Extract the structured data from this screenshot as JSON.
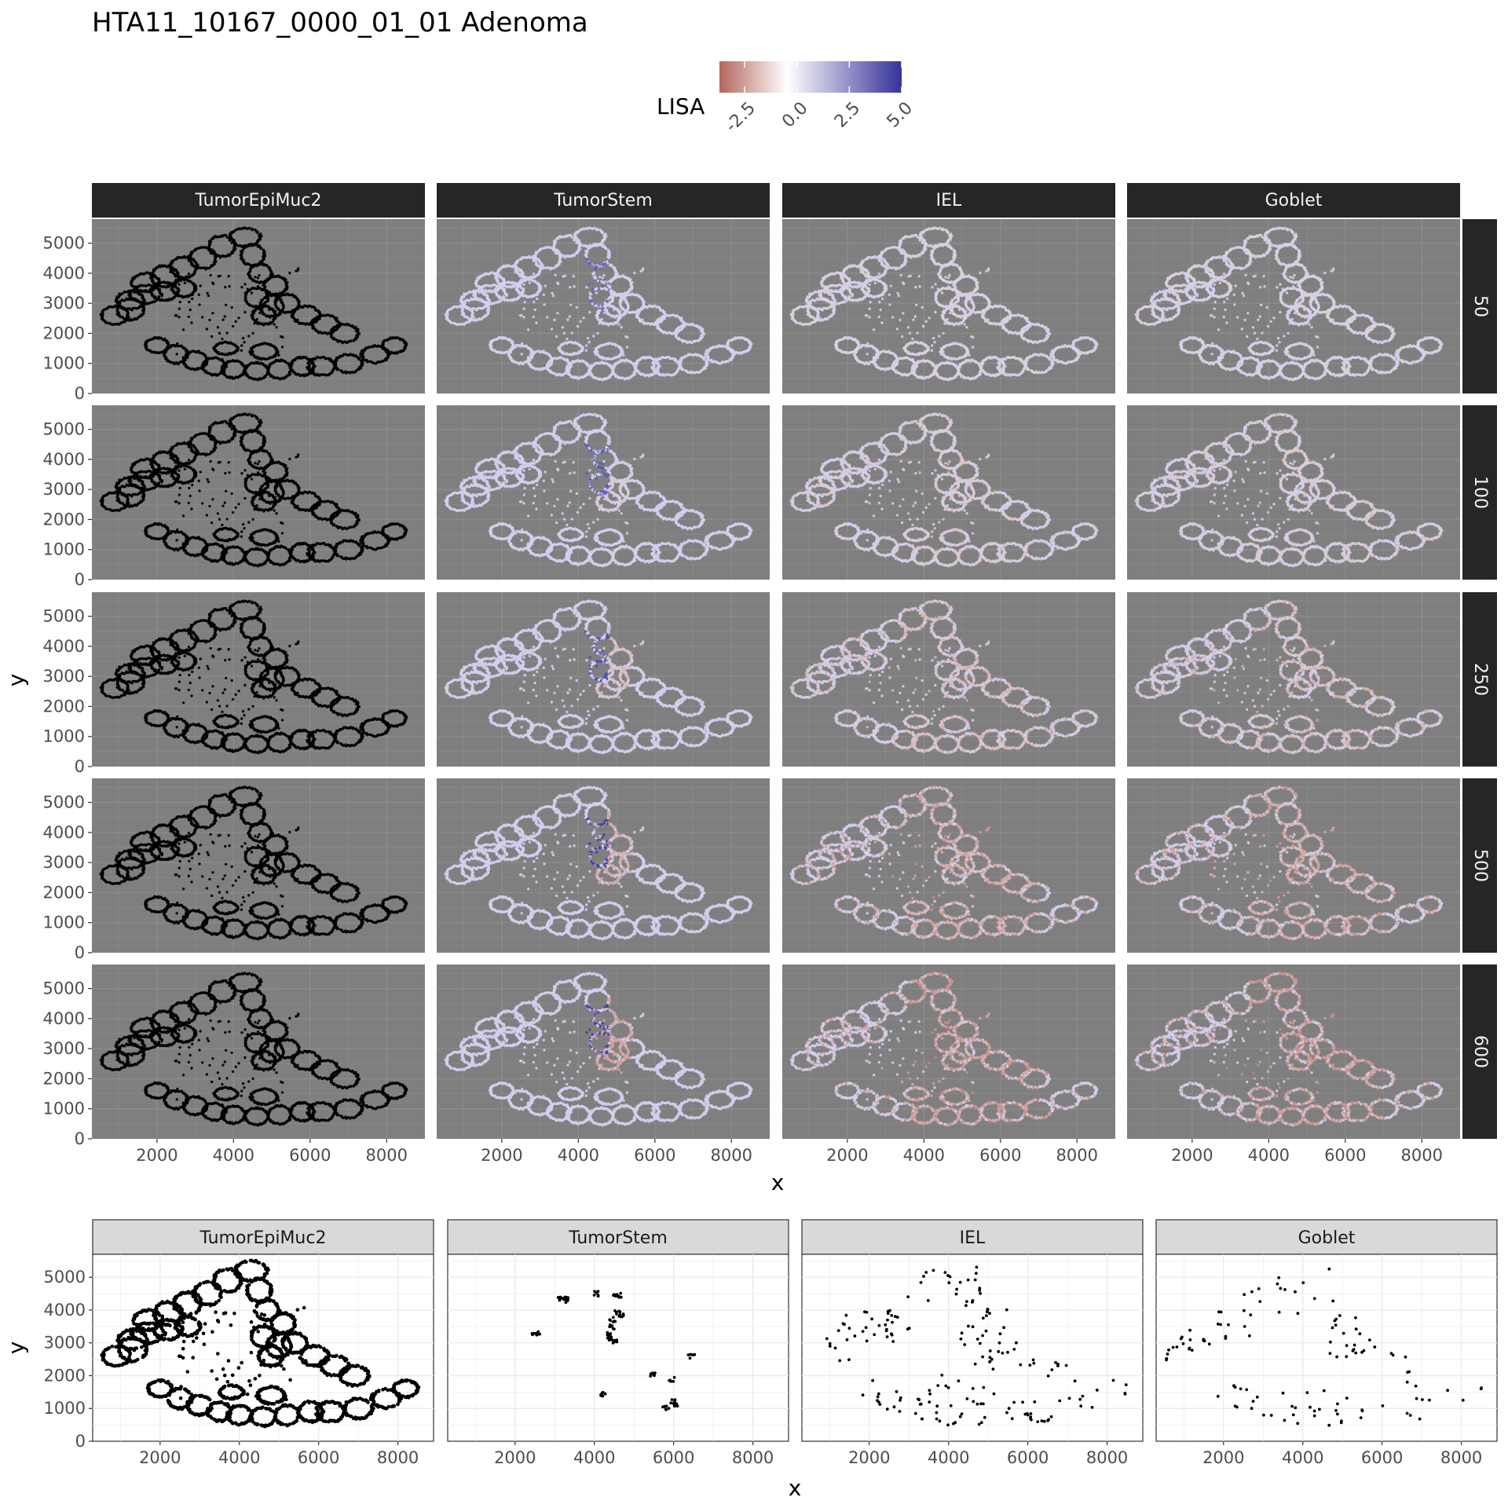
{
  "title": "HTA11_10167_0000_01_01 Adenoma",
  "legend": {
    "title": "LISA",
    "ticks": [
      "-2.5",
      "0.0",
      "2.5",
      "5.0"
    ],
    "tick_values": [
      -2.5,
      0.0,
      2.5,
      5.0
    ],
    "range": [
      -3.7,
      5.0
    ],
    "colors": {
      "low": "#b5655e",
      "mid": "#ffffff",
      "high": "#35329a"
    }
  },
  "chart_data": [
    {
      "type": "scatter",
      "description_of_marks": "spatial cell map colored by LISA, faceted by cell type (columns) and neighborhood radius (rows)",
      "columns": [
        "TumorEpiMuc2",
        "TumorStem",
        "IEL",
        "Goblet"
      ],
      "rows": [
        "50",
        "100",
        "250",
        "500",
        "600"
      ],
      "xlabel": "x",
      "ylabel": "y",
      "x_ticks": [
        2000,
        4000,
        6000,
        8000
      ],
      "y_ticks": [
        0,
        1000,
        2000,
        3000,
        4000,
        5000
      ],
      "xlim": [
        300,
        9000
      ],
      "ylim": [
        0,
        5800
      ],
      "panel_background": "#7f7f7f",
      "strip_color": "#262626",
      "intensity_by_row": [
        0.15,
        0.3,
        0.5,
        0.7,
        0.8
      ],
      "column_tone": [
        "blue",
        "mixed",
        "red",
        "red"
      ]
    },
    {
      "type": "scatter",
      "description_of_marks": "locations of cells of each type",
      "columns": [
        "TumorEpiMuc2",
        "TumorStem",
        "IEL",
        "Goblet"
      ],
      "xlabel": "x",
      "ylabel": "y",
      "x_ticks": [
        2000,
        4000,
        6000,
        8000
      ],
      "y_ticks": [
        0,
        1000,
        2000,
        3000,
        4000,
        5000
      ],
      "xlim": [
        300,
        8900
      ],
      "ylim": [
        0,
        5700
      ],
      "point_color": "#000000",
      "tumorstem_points": [
        [
          2500,
          3300
        ],
        [
          2550,
          3280
        ],
        [
          3150,
          4320
        ],
        [
          3250,
          4350
        ],
        [
          3300,
          4300
        ],
        [
          4450,
          3700
        ],
        [
          4550,
          4400
        ],
        [
          4600,
          4450
        ],
        [
          4400,
          3100
        ],
        [
          4500,
          3050
        ],
        [
          4600,
          3900
        ],
        [
          4700,
          3800
        ],
        [
          4450,
          3500
        ],
        [
          4350,
          3300
        ],
        [
          4200,
          1450
        ],
        [
          5450,
          2050
        ],
        [
          5950,
          1900
        ],
        [
          5800,
          1000
        ],
        [
          6050,
          1150
        ],
        [
          6000,
          1200
        ],
        [
          6450,
          2600
        ],
        [
          4050,
          4500
        ]
      ]
    }
  ]
}
